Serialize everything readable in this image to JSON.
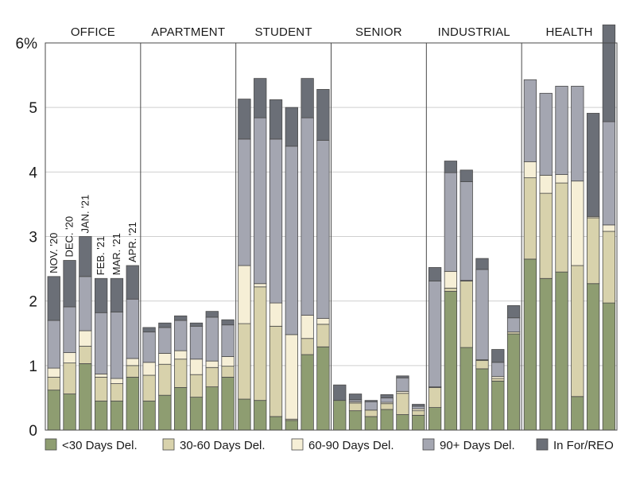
{
  "chart_data": {
    "type": "bar",
    "stacked": true,
    "y_axis": {
      "ylim": [
        0,
        6
      ],
      "ticks": [
        0,
        1,
        2,
        3,
        4,
        5,
        6
      ],
      "tick_labels": [
        "0",
        "1",
        "2",
        "3",
        "4",
        "5",
        "6%"
      ],
      "grid": true
    },
    "panels": [
      "OFFICE",
      "APARTMENT",
      "STUDENT",
      "SENIOR",
      "INDUSTRIAL",
      "HEALTH"
    ],
    "months": [
      "NOV. '20",
      "DEC. '20",
      "JAN. '21",
      "FEB. '21",
      "MAR. '21",
      "APR. '21"
    ],
    "month_labels_shown_in_panel": "OFFICE",
    "legend_position": "bottom",
    "series": [
      {
        "name": "<30 Days Del.",
        "color": "#8e9d71",
        "values": [
          [
            0.62,
            0.56,
            1.03,
            0.45,
            0.45,
            0.82
          ],
          [
            0.45,
            0.54,
            0.66,
            0.51,
            0.67,
            0.82
          ],
          [
            0.48,
            0.46,
            0.21,
            0.15,
            1.17,
            1.29
          ],
          [
            0.46,
            0.3,
            0.21,
            0.32,
            0.24,
            0.23
          ],
          [
            0.35,
            2.15,
            1.28,
            0.95,
            0.76,
            1.49
          ],
          [
            2.65,
            2.35,
            2.45,
            0.52,
            2.27,
            1.97
          ]
        ]
      },
      {
        "name": "30-60 Days Del.",
        "color": "#d8d2ac",
        "values": [
          [
            0.2,
            0.48,
            0.27,
            0.37,
            0.27,
            0.18
          ],
          [
            0.4,
            0.48,
            0.44,
            0.35,
            0.3,
            0.17
          ],
          [
            1.17,
            1.76,
            1.4,
            0.02,
            0.25,
            0.35
          ],
          [
            0.0,
            0.12,
            0.1,
            0.09,
            0.33,
            0.07
          ],
          [
            0.31,
            0.05,
            1.03,
            0.13,
            0.04,
            0.03
          ],
          [
            1.26,
            1.32,
            1.38,
            2.03,
            1.02,
            1.11
          ]
        ]
      },
      {
        "name": "60-90 Days Del.",
        "color": "#f6efd6",
        "values": [
          [
            0.14,
            0.16,
            0.24,
            0.05,
            0.08,
            0.11
          ],
          [
            0.2,
            0.17,
            0.13,
            0.24,
            0.1,
            0.15
          ],
          [
            0.9,
            0.05,
            0.36,
            1.31,
            0.36,
            0.09
          ],
          [
            0.0,
            0.02,
            0.0,
            0.02,
            0.03,
            0.03
          ],
          [
            0.01,
            0.26,
            0.01,
            0.01,
            0.03,
            0.0
          ],
          [
            0.25,
            0.28,
            0.13,
            1.31,
            0.02,
            0.1
          ]
        ]
      },
      {
        "name": "90+ Days Del.",
        "color": "#a4a6b1",
        "values": [
          [
            0.74,
            0.71,
            0.84,
            0.95,
            1.03,
            0.92
          ],
          [
            0.47,
            0.4,
            0.47,
            0.51,
            0.68,
            0.49
          ],
          [
            1.96,
            2.57,
            2.54,
            2.92,
            3.06,
            2.76
          ],
          [
            0.0,
            0.03,
            0.13,
            0.07,
            0.21,
            0.04
          ],
          [
            1.64,
            1.53,
            1.53,
            1.4,
            0.22,
            0.22
          ],
          [
            1.27,
            1.27,
            1.37,
            1.47,
            0.0,
            1.6
          ]
        ]
      },
      {
        "name": "In For/REO",
        "color": "#6b6f77",
        "values": [
          [
            0.68,
            0.72,
            0.62,
            0.53,
            0.52,
            0.52
          ],
          [
            0.07,
            0.07,
            0.07,
            0.05,
            0.09,
            0.08
          ],
          [
            0.62,
            0.61,
            0.61,
            0.6,
            0.61,
            0.79
          ],
          [
            0.24,
            0.09,
            0.02,
            0.05,
            0.03,
            0.03
          ],
          [
            0.21,
            0.18,
            0.18,
            0.17,
            0.2,
            0.19
          ],
          [
            0.0,
            0.0,
            0.0,
            0.0,
            1.6,
            1.5
          ]
        ]
      }
    ]
  }
}
